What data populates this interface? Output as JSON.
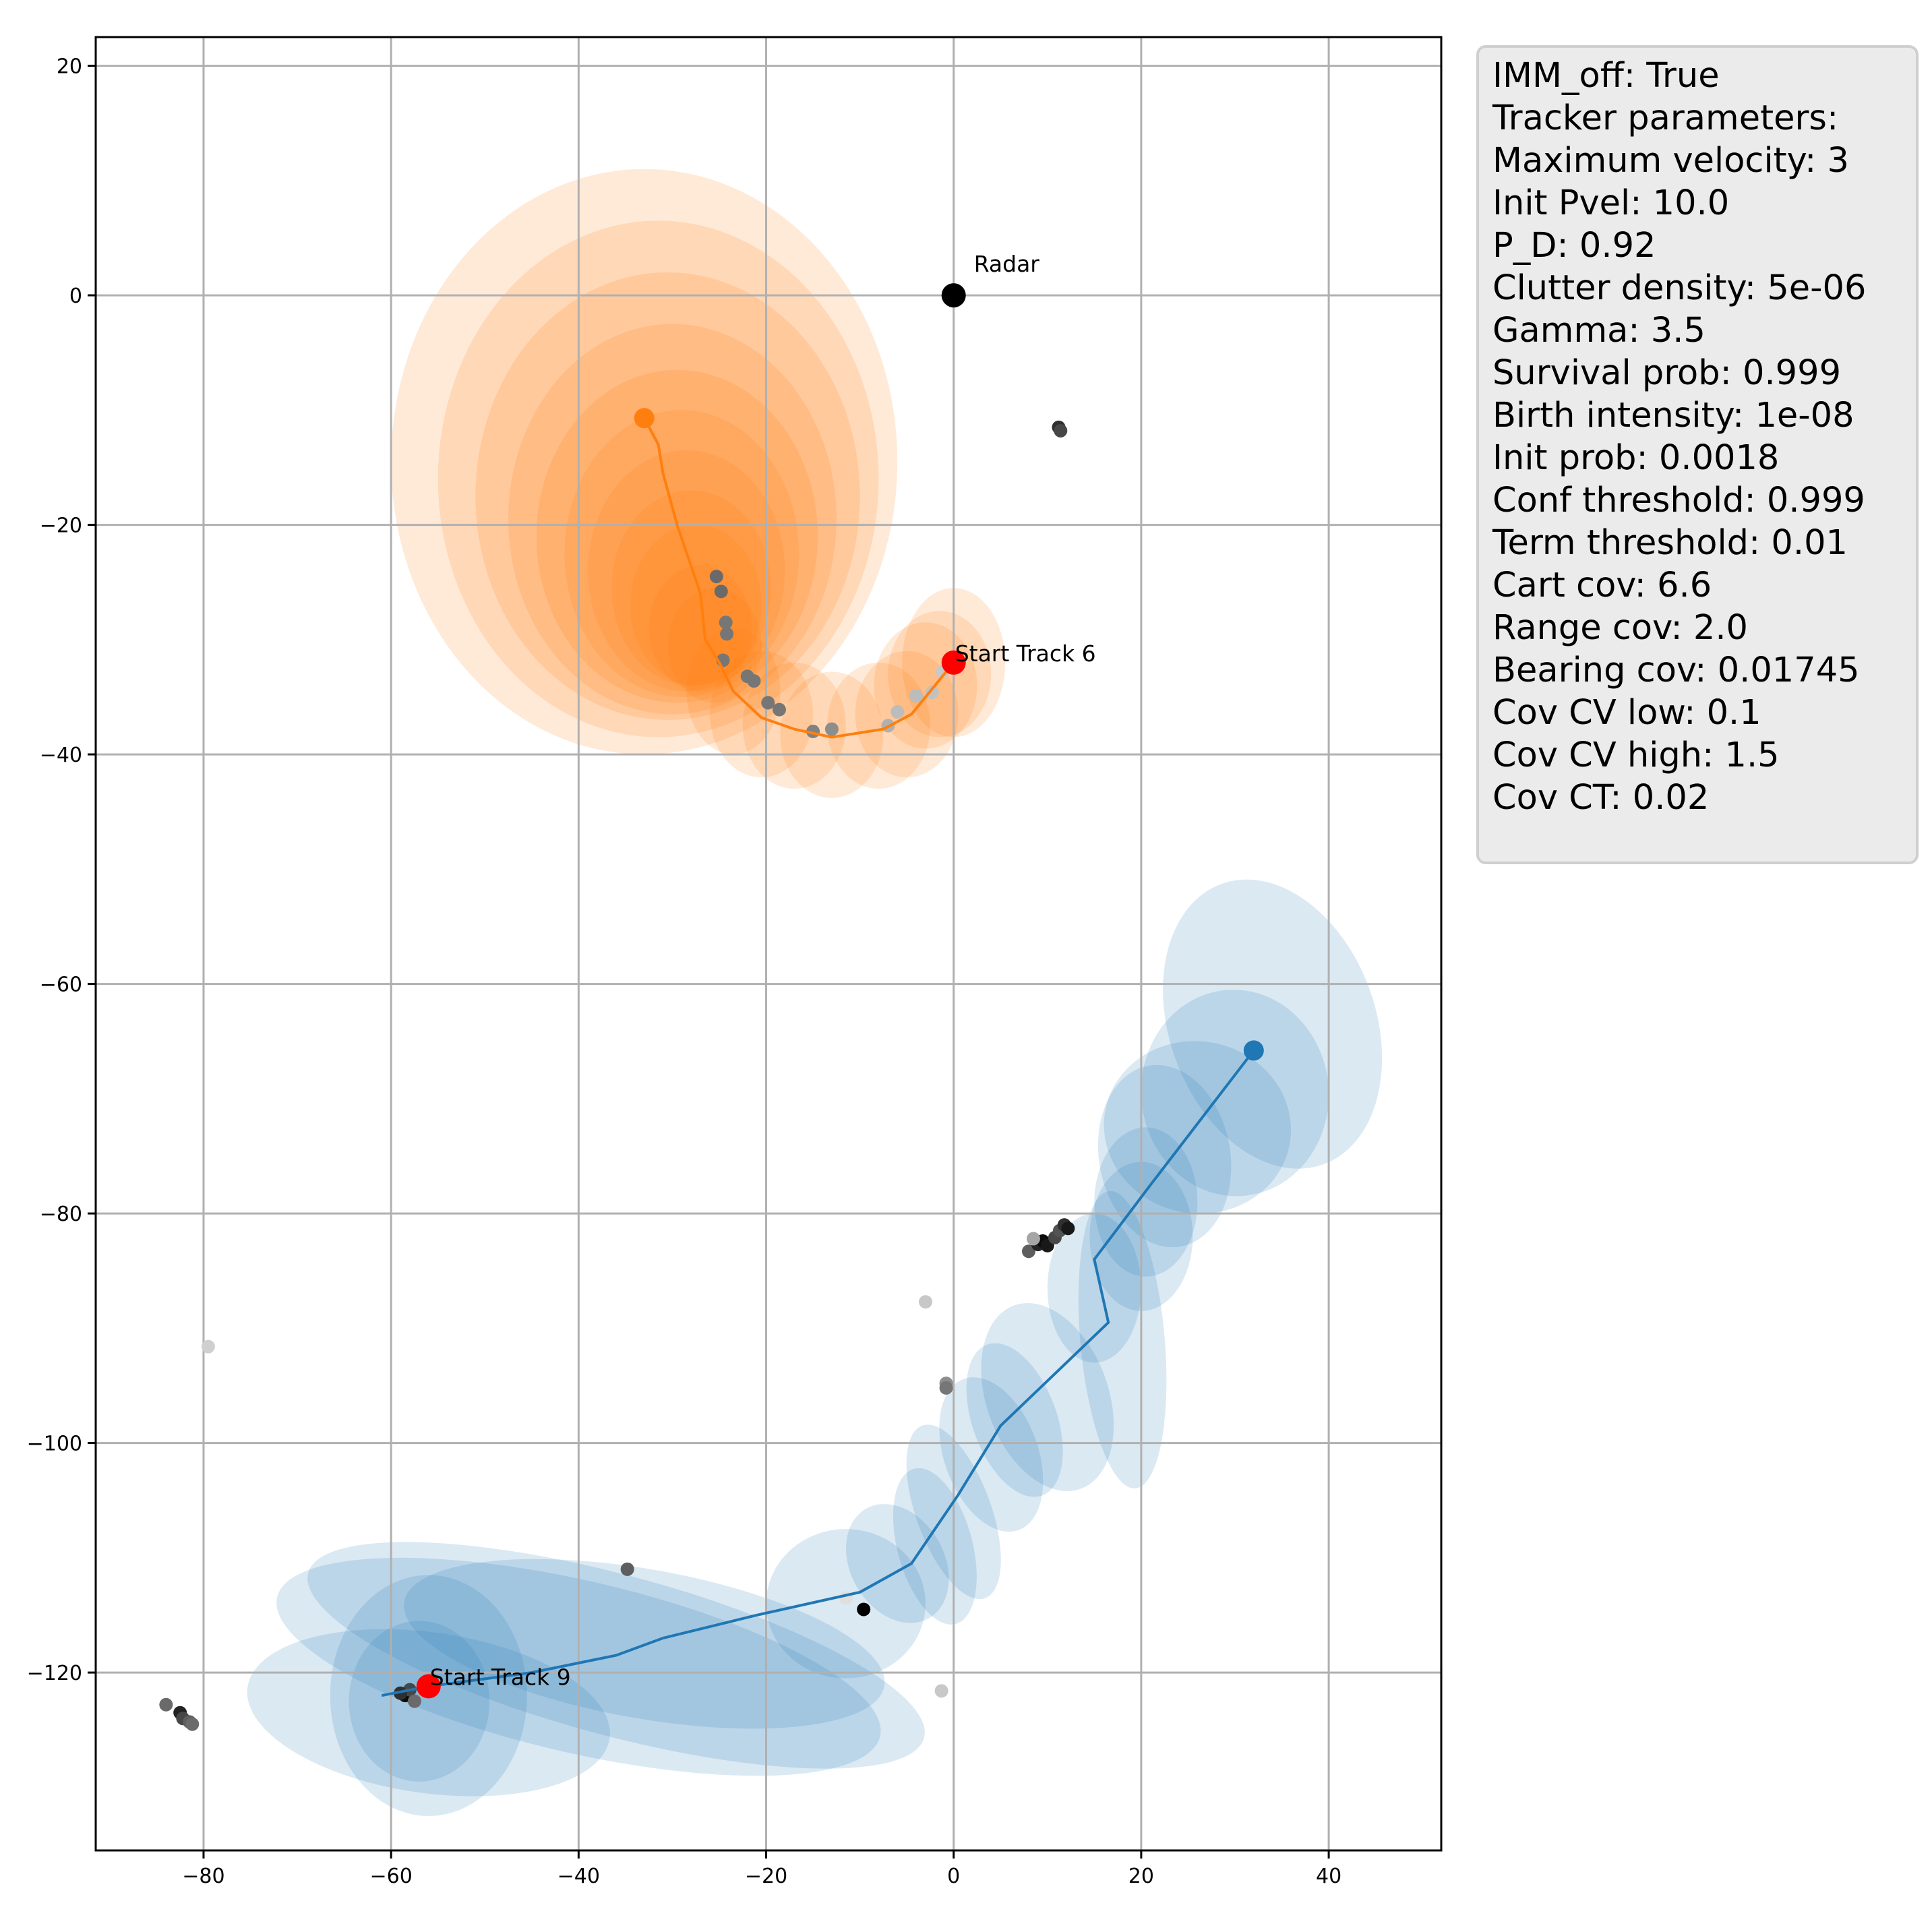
{
  "info": {
    "lines": [
      "IMM_off: True",
      "Tracker parameters:",
      "Maximum velocity: 3",
      "Init Pvel: 10.0",
      "P_D: 0.92",
      "Clutter density: 5e-06",
      "Gamma: 3.5",
      "Survival prob: 0.999",
      "Birth intensity: 1e-08",
      "Init prob: 0.0018",
      "Conf threshold: 0.999",
      "Term threshold: 0.01",
      "Cart cov: 6.6",
      "Range cov: 2.0",
      "Bearing cov: 0.01745",
      "Cov CV low: 0.1",
      "Cov CV high: 1.5",
      "Cov CT: 0.02"
    ]
  },
  "chart_data": {
    "type": "scatter",
    "title": "",
    "xlabel": "",
    "ylabel": "",
    "xlim": [
      -91.5,
      52
    ],
    "ylim": [
      -135.5,
      22.5
    ],
    "xticks": [
      -80,
      -60,
      -40,
      -20,
      0,
      20,
      40
    ],
    "yticks": [
      20,
      0,
      -20,
      -40,
      -60,
      -80,
      -100,
      -120
    ],
    "grid": true,
    "colors": {
      "track6": "#ff7f0e",
      "track9": "#1f77b4",
      "start": "#ff0000",
      "radar": "#000000",
      "grid": "#b0b0b0"
    },
    "radar": {
      "x": 0,
      "y": 0,
      "label": "Radar"
    },
    "annotations": [
      {
        "text": "Start Track 6",
        "x": 0,
        "y": -32
      },
      {
        "text": "Start Track 9",
        "x": -56,
        "y": -121.2
      }
    ],
    "tracks": [
      {
        "id": 6,
        "start": {
          "x": 0,
          "y": -32
        },
        "end": {
          "x": -33,
          "y": -10.7
        },
        "path": [
          {
            "x": 0,
            "y": -32
          },
          {
            "x": -2,
            "y": -34
          },
          {
            "x": -4.5,
            "y": -36.5
          },
          {
            "x": -7.5,
            "y": -37.8
          },
          {
            "x": -13,
            "y": -38.5
          },
          {
            "x": -17,
            "y": -37.8
          },
          {
            "x": -20.5,
            "y": -36.8
          },
          {
            "x": -23.5,
            "y": -34.5
          },
          {
            "x": -25,
            "y": -32
          },
          {
            "x": -26.5,
            "y": -30
          },
          {
            "x": -27,
            "y": -26
          },
          {
            "x": -29.5,
            "y": -20
          },
          {
            "x": -31,
            "y": -15.5
          },
          {
            "x": -31.5,
            "y": -13
          },
          {
            "x": -33,
            "y": -10.7
          }
        ],
        "ellipses": [
          {
            "x": -33,
            "y": -14.5,
            "rx": 27,
            "ry": 25.5
          },
          {
            "x": -31.5,
            "y": -16,
            "rx": 23.5,
            "ry": 22.5
          },
          {
            "x": -30.5,
            "y": -17.5,
            "rx": 20.5,
            "ry": 19.5
          },
          {
            "x": -30,
            "y": -19.5,
            "rx": 17.5,
            "ry": 17
          },
          {
            "x": -29.5,
            "y": -21,
            "rx": 15,
            "ry": 14.5
          },
          {
            "x": -29,
            "y": -22.5,
            "rx": 12.5,
            "ry": 12.5
          },
          {
            "x": -28.5,
            "y": -24,
            "rx": 10.5,
            "ry": 10.5
          },
          {
            "x": -28,
            "y": -25.5,
            "rx": 8.5,
            "ry": 8.5
          },
          {
            "x": -27.5,
            "y": -27,
            "rx": 7,
            "ry": 7
          },
          {
            "x": -27,
            "y": -29,
            "rx": 5.5,
            "ry": 5.5
          },
          {
            "x": -25.5,
            "y": -30.5,
            "rx": 5,
            "ry": 5
          },
          {
            "x": -23.5,
            "y": -34.5,
            "rx": 5,
            "ry": 5.5
          },
          {
            "x": -20.5,
            "y": -36.5,
            "rx": 5.5,
            "ry": 5.5
          },
          {
            "x": -17,
            "y": -37.5,
            "rx": 5.5,
            "ry": 5.5
          },
          {
            "x": -13,
            "y": -38.3,
            "rx": 5.5,
            "ry": 5.5
          },
          {
            "x": -8,
            "y": -37.5,
            "rx": 5.5,
            "ry": 5.5
          },
          {
            "x": -5,
            "y": -36.5,
            "rx": 5.5,
            "ry": 5.5
          },
          {
            "x": -3,
            "y": -34,
            "rx": 5.5,
            "ry": 5.5
          },
          {
            "x": -1.5,
            "y": -33,
            "rx": 5.5,
            "ry": 5.5
          },
          {
            "x": 0,
            "y": -32,
            "rx": 5.5,
            "ry": 6.5
          }
        ]
      },
      {
        "id": 9,
        "start": {
          "x": -56,
          "y": -121.2
        },
        "end": {
          "x": 32,
          "y": -65.8
        },
        "path": [
          {
            "x": -61,
            "y": -122
          },
          {
            "x": -56,
            "y": -121.2
          },
          {
            "x": -45,
            "y": -120
          },
          {
            "x": -36,
            "y": -118.5
          },
          {
            "x": -31,
            "y": -117
          },
          {
            "x": -21,
            "y": -115
          },
          {
            "x": -10,
            "y": -113
          },
          {
            "x": -4.5,
            "y": -110.5
          },
          {
            "x": 0.5,
            "y": -104.5
          },
          {
            "x": 5,
            "y": -98.5
          },
          {
            "x": 16.5,
            "y": -89.5
          },
          {
            "x": 15,
            "y": -84
          },
          {
            "x": 21,
            "y": -77.5
          },
          {
            "x": 32,
            "y": -65.8
          }
        ],
        "ellipses": [
          {
            "x": -56,
            "y": -123.5,
            "rx": 19.5,
            "ry": 7,
            "rot": -8
          },
          {
            "x": -56,
            "y": -122,
            "rx": 10.5,
            "ry": 10.5
          },
          {
            "x": -57,
            "y": -122.5,
            "rx": 7.5,
            "ry": 7
          },
          {
            "x": -40,
            "y": -119.5,
            "rx": 33,
            "ry": 7.5,
            "rot": -13
          },
          {
            "x": -36,
            "y": -118.5,
            "rx": 34,
            "ry": 7,
            "rot": -15
          },
          {
            "x": -33,
            "y": -117.5,
            "rx": 26,
            "ry": 6.5,
            "rot": -10
          },
          {
            "x": -11.5,
            "y": -114,
            "rx": 8.5,
            "ry": 6.5
          },
          {
            "x": -6,
            "y": -110.5,
            "rx": 5,
            "ry": 5.5,
            "rot": 30
          },
          {
            "x": -2,
            "y": -109,
            "rx": 4,
            "ry": 7,
            "rot": 15
          },
          {
            "x": 0,
            "y": -106,
            "rx": 4,
            "ry": 8,
            "rot": 20
          },
          {
            "x": 4,
            "y": -101,
            "rx": 5,
            "ry": 7,
            "rot": 20
          },
          {
            "x": 6.5,
            "y": -98,
            "rx": 4.5,
            "ry": 7,
            "rot": 20
          },
          {
            "x": 10,
            "y": -96,
            "rx": 6.5,
            "ry": 8.5,
            "rot": 20
          },
          {
            "x": 18,
            "y": -91,
            "rx": 4.5,
            "ry": 13,
            "rot": 5
          },
          {
            "x": 15,
            "y": -86.5,
            "rx": 5,
            "ry": 6.5
          },
          {
            "x": 20,
            "y": -82,
            "rx": 5.5,
            "ry": 6.5
          },
          {
            "x": 20.5,
            "y": -79,
            "rx": 5.5,
            "ry": 6.5
          },
          {
            "x": 22.5,
            "y": -75,
            "rx": 7,
            "ry": 8,
            "rot": 10
          },
          {
            "x": 26,
            "y": -72.5,
            "rx": 10,
            "ry": 7.5,
            "rot": -10
          },
          {
            "x": 30,
            "y": -69.5,
            "rx": 10,
            "ry": 9,
            "rot": 5
          },
          {
            "x": 34,
            "y": -63.5,
            "rx": 11,
            "ry": 13,
            "rot": 20
          }
        ]
      }
    ],
    "measurements": [
      {
        "x": -25.3,
        "y": -24.5,
        "s": 0.45
      },
      {
        "x": -24.8,
        "y": -25.8,
        "s": 0.45
      },
      {
        "x": -24.3,
        "y": -28.5,
        "s": 0.5
      },
      {
        "x": -24.2,
        "y": -29.5,
        "s": 0.5
      },
      {
        "x": -24.6,
        "y": -31.8,
        "s": 0.5
      },
      {
        "x": -22,
        "y": -33.2,
        "s": 0.5
      },
      {
        "x": -21.3,
        "y": -33.6,
        "s": 0.5
      },
      {
        "x": -19.8,
        "y": -35.5,
        "s": 0.5
      },
      {
        "x": -18.6,
        "y": -36.1,
        "s": 0.5
      },
      {
        "x": -15,
        "y": -38,
        "s": 0.55
      },
      {
        "x": -13,
        "y": -37.8,
        "s": 0.6
      },
      {
        "x": -7,
        "y": -37.5,
        "s": 0.75
      },
      {
        "x": -6,
        "y": -36.3,
        "s": 0.8
      },
      {
        "x": -4,
        "y": -34.9,
        "s": 0.8
      },
      {
        "x": -2.3,
        "y": -34.6,
        "s": 0.82
      },
      {
        "x": -1.2,
        "y": -32.8,
        "s": 0.85
      },
      {
        "x": 11.2,
        "y": -11.5,
        "s": 0.2
      },
      {
        "x": 11.4,
        "y": -11.8,
        "s": 0.3
      },
      {
        "x": -84,
        "y": -122.8,
        "s": 0.45
      },
      {
        "x": -82.5,
        "y": -123.5,
        "s": 0.15
      },
      {
        "x": -82.2,
        "y": -124,
        "s": 0.3
      },
      {
        "x": -81.5,
        "y": -124.3,
        "s": 0.4
      },
      {
        "x": -81.2,
        "y": -124.5,
        "s": 0.45
      },
      {
        "x": -79.5,
        "y": -91.6,
        "s": 0.88
      },
      {
        "x": -58.5,
        "y": -122,
        "s": 0.05
      },
      {
        "x": -58,
        "y": -121.5,
        "s": 0.3
      },
      {
        "x": -57.5,
        "y": -122.5,
        "s": 0.45
      },
      {
        "x": -59,
        "y": -121.8,
        "s": 0.2
      },
      {
        "x": -34.8,
        "y": -111,
        "s": 0.4
      },
      {
        "x": -9.6,
        "y": -114.5,
        "s": 0.0
      },
      {
        "x": -11.5,
        "y": -113.5,
        "s": 0.95
      },
      {
        "x": -3,
        "y": -87.7,
        "s": 0.85
      },
      {
        "x": -0.8,
        "y": -94.8,
        "s": 0.6
      },
      {
        "x": -0.8,
        "y": -95.2,
        "s": 0.5
      },
      {
        "x": -1.3,
        "y": -121.6,
        "s": 0.85
      },
      {
        "x": 8,
        "y": -83.3,
        "s": 0.4
      },
      {
        "x": 9,
        "y": -82.7,
        "s": 0.15
      },
      {
        "x": 9.5,
        "y": -82.4,
        "s": 0.05
      },
      {
        "x": 10,
        "y": -82.8,
        "s": 0.1
      },
      {
        "x": 10.8,
        "y": -82.1,
        "s": 0.3
      },
      {
        "x": 11.3,
        "y": -81.5,
        "s": 0.35
      },
      {
        "x": 11.8,
        "y": -81,
        "s": 0.2
      },
      {
        "x": 12.2,
        "y": -81.3,
        "s": 0.1
      },
      {
        "x": 8.5,
        "y": -82.2,
        "s": 0.7
      }
    ]
  }
}
